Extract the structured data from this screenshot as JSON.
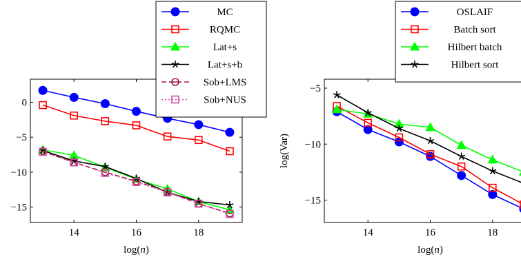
{
  "chart_data": [
    {
      "type": "line",
      "xlabel_pre": "log(",
      "xlabel_var": "n",
      "xlabel_post": ")",
      "ylabel": "",
      "xlim": [
        12.6,
        19.4
      ],
      "ylim": [
        -17.2,
        3.3
      ],
      "xticks": [
        14,
        16,
        18
      ],
      "yticks": [
        0,
        -5,
        -10,
        -15
      ],
      "yticklabels": [
        "0",
        "−5",
        "−10",
        "−15"
      ],
      "legend_position": "top-right",
      "x": [
        13,
        14,
        15,
        16,
        17,
        18,
        19
      ],
      "series": [
        {
          "name": "MC",
          "values": [
            1.7,
            0.7,
            -0.2,
            -1.3,
            -2.3,
            -3.2,
            -4.3
          ],
          "color": "#0000ff",
          "marker": "circle",
          "dash": "solid"
        },
        {
          "name": "RQMC",
          "values": [
            -0.4,
            -1.9,
            -2.7,
            -3.3,
            -4.9,
            -5.4,
            -7.0
          ],
          "color": "#ff0000",
          "marker": "square",
          "dash": "solid"
        },
        {
          "name": "Lat+s",
          "values": [
            -6.8,
            -7.6,
            -9.3,
            -11.0,
            -12.4,
            -14.2,
            -15.4
          ],
          "color": "#00ff00",
          "marker": "triangle",
          "dash": "solid"
        },
        {
          "name": "Lat+s+b",
          "values": [
            -6.9,
            -8.4,
            -9.2,
            -10.9,
            -12.9,
            -14.2,
            -14.7
          ],
          "color": "#000000",
          "marker": "star",
          "dash": "solid"
        },
        {
          "name": "Sob+LMS",
          "values": [
            -7.0,
            -8.6,
            -10.0,
            -11.3,
            -12.8,
            -14.5,
            -15.9
          ],
          "color": "#a0133c",
          "marker": "circle-open",
          "dash": "dashed"
        },
        {
          "name": "Sob+NUS",
          "values": [
            -7.1,
            -8.6,
            -10.1,
            -11.4,
            -12.9,
            -14.5,
            -16.0
          ],
          "color": "#d14da8",
          "marker": "square",
          "dash": "dotted"
        }
      ]
    },
    {
      "type": "line",
      "xlabel_pre": "log(",
      "xlabel_var": "n",
      "xlabel_post": ")",
      "ylabel": "log(Var)",
      "xlim": [
        12.6,
        19.4
      ],
      "ylim": [
        -17.0,
        -4.2
      ],
      "xticks": [
        14,
        16,
        18
      ],
      "yticks": [
        -5,
        -10,
        -15
      ],
      "yticklabels": [
        "−5",
        "−10",
        "−15"
      ],
      "legend_position": "top-right",
      "x": [
        13,
        14,
        15,
        16,
        17,
        18,
        19
      ],
      "series": [
        {
          "name": "OSLAIF",
          "values": [
            -7.1,
            -8.7,
            -9.8,
            -11.1,
            -12.8,
            -14.5,
            -15.8
          ],
          "color": "#0000ff",
          "marker": "circle",
          "dash": "solid"
        },
        {
          "name": "Batch sort",
          "values": [
            -6.6,
            -8.1,
            -9.4,
            -10.9,
            -12.0,
            -13.9,
            -15.4
          ],
          "color": "#ff0000",
          "marker": "square",
          "dash": "solid"
        },
        {
          "name": "Hilbert batch",
          "values": [
            -6.9,
            -7.3,
            -8.2,
            -8.5,
            -10.1,
            -11.4,
            -12.5
          ],
          "color": "#00ff00",
          "marker": "triangle",
          "dash": "solid"
        },
        {
          "name": "Hilbert sort",
          "values": [
            -5.6,
            -7.2,
            -8.6,
            -9.7,
            -11.1,
            -12.4,
            -13.5
          ],
          "color": "#000000",
          "marker": "star",
          "dash": "solid"
        }
      ]
    }
  ]
}
